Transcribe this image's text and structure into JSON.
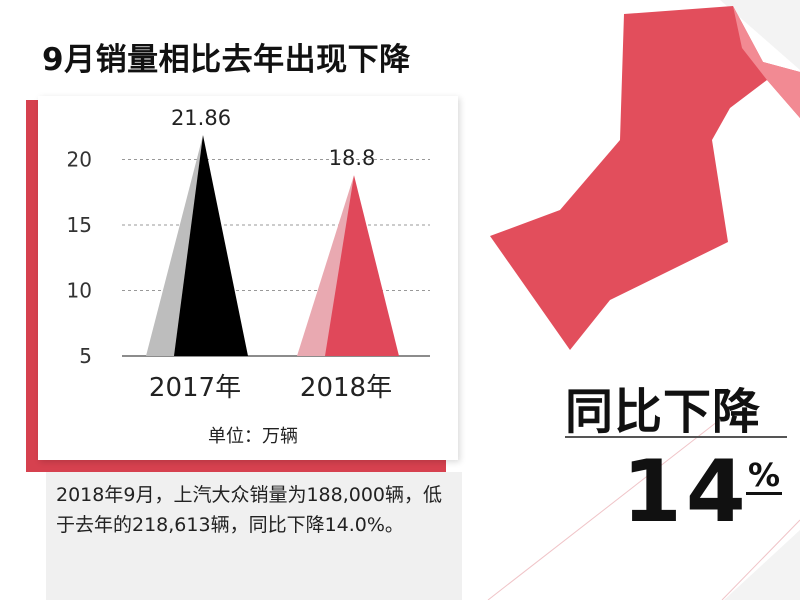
{
  "title": "9月销量相比去年出现下降",
  "unit_label": "单位：万辆",
  "description": "2018年9月，上汽大众销量为188,000辆，低于去年的218,613辆，同比下降14.0%。",
  "yoy": {
    "label": "同比下降",
    "value": "14",
    "percent_sign": "%"
  },
  "colors": {
    "accent": "#d6414f",
    "arrow": "#e05060",
    "bar_2017_front": "#000000",
    "bar_2017_back": "#bdbdbd",
    "bar_2018_front": "#e0485a",
    "bar_2018_back": "#e9a9b1"
  },
  "chart_data": {
    "type": "bar",
    "style": "pyramid",
    "categories": [
      "2017年",
      "2018年"
    ],
    "values": [
      21.86,
      18.8
    ],
    "value_labels": [
      "21.86",
      "18.8"
    ],
    "yticks": [
      5,
      10,
      15,
      20
    ],
    "ylim": [
      5,
      22
    ],
    "grid": true,
    "title": "",
    "xlabel": "",
    "ylabel": ""
  }
}
